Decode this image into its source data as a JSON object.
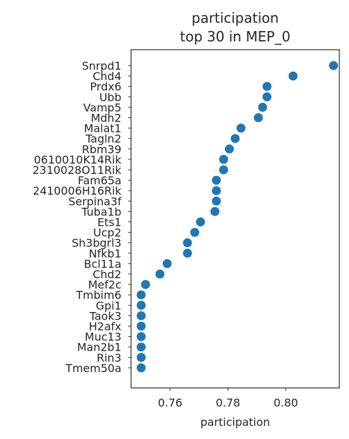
{
  "chart_data": {
    "type": "scatter",
    "title": [
      "participation",
      "top 30 in MEP_0"
    ],
    "xlabel": "participation",
    "ylabel": "",
    "xlim": [
      0.7465,
      0.8185
    ],
    "xticks": [
      0.76,
      0.78,
      0.8
    ],
    "xtick_labels": [
      "0.76",
      "0.78",
      "0.80"
    ],
    "grid": false,
    "marker_color": "#1f77b4",
    "categories": [
      "Snrpd1",
      "Chd4",
      "Prdx6",
      "Ubb",
      "Vamp5",
      "Mdh2",
      "Malat1",
      "Tagln2",
      "Rbm39",
      "0610010K14Rik",
      "2310028O11Rik",
      "Fam65a",
      "2410006H16Rik",
      "Serpina3f",
      "Tuba1b",
      "Ets1",
      "Ucp2",
      "Sh3bgrl3",
      "Nfkb1",
      "Bcl11a",
      "Chd2",
      "Mef2c",
      "Tmbim6",
      "Gpi1",
      "Taok3",
      "H2afx",
      "Muc13",
      "Man2b1",
      "Rin3",
      "Tmem50a"
    ],
    "values": [
      0.8165,
      0.8025,
      0.7935,
      0.7935,
      0.792,
      0.7905,
      0.7845,
      0.7825,
      0.7805,
      0.7785,
      0.7785,
      0.776,
      0.776,
      0.776,
      0.7755,
      0.7705,
      0.7685,
      0.766,
      0.766,
      0.759,
      0.7565,
      0.7515,
      0.75,
      0.75,
      0.75,
      0.75,
      0.75,
      0.75,
      0.75,
      0.75
    ]
  }
}
